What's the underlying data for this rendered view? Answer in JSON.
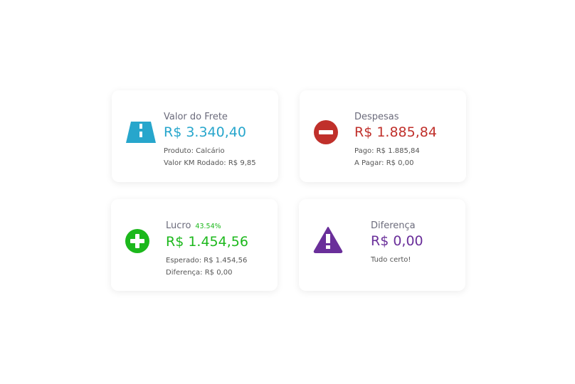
{
  "colors": {
    "frete": "#27a6cc",
    "despesas": "#c0302b",
    "lucro": "#1cb81c",
    "diferenca": "#6a2f9a"
  },
  "cards": [
    {
      "icon": "road-icon",
      "title": "Valor do Frete",
      "value": "R$ 3.340,40",
      "lines": [
        "Produto: Calcário",
        "Valor KM Rodado: R$ 9,85"
      ]
    },
    {
      "icon": "minus-circle-icon",
      "title": "Despesas",
      "value": "R$ 1.885,84",
      "lines": [
        "Pago: R$ 1.885,84",
        "A Pagar: R$ 0,00"
      ]
    },
    {
      "icon": "plus-circle-icon",
      "title": "Lucro",
      "badge": "43.54%",
      "value": "R$ 1.454,56",
      "lines": [
        "Esperado: R$ 1.454,56",
        "Diferença: R$ 0,00"
      ]
    },
    {
      "icon": "warning-icon",
      "title": "Diferença",
      "value": "R$ 0,00",
      "lines": [
        "Tudo certo!"
      ]
    }
  ]
}
